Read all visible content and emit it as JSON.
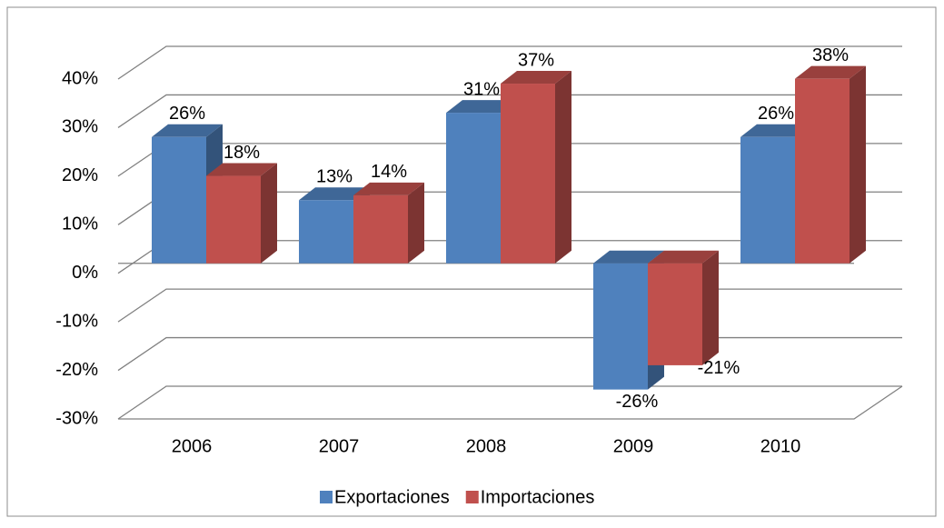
{
  "chart_data": {
    "type": "bar3d",
    "categories": [
      "2006",
      "2007",
      "2008",
      "2009",
      "2010"
    ],
    "series": [
      {
        "name": "Exportaciones",
        "color": "#4f81bd",
        "values": [
          26,
          13,
          31,
          -26,
          26
        ],
        "value_labels": [
          "26%",
          "13%",
          "31%",
          "-26%",
          "26%"
        ]
      },
      {
        "name": "Importaciones",
        "color": "#c0504d",
        "values": [
          18,
          14,
          37,
          -21,
          38
        ],
        "value_labels": [
          "18%",
          "14%",
          "37%",
          "-21%",
          "38%"
        ]
      }
    ],
    "ylim": [
      -30,
      40
    ],
    "yticks": [
      {
        "value": -30,
        "label": "-30%"
      },
      {
        "value": -20,
        "label": "-20%"
      },
      {
        "value": -10,
        "label": "-10%"
      },
      {
        "value": 0,
        "label": "0%"
      },
      {
        "value": 10,
        "label": "10%"
      },
      {
        "value": 20,
        "label": "20%"
      },
      {
        "value": 30,
        "label": "30%"
      },
      {
        "value": 40,
        "label": "40%"
      }
    ],
    "grid": true,
    "legend": "bottom"
  }
}
